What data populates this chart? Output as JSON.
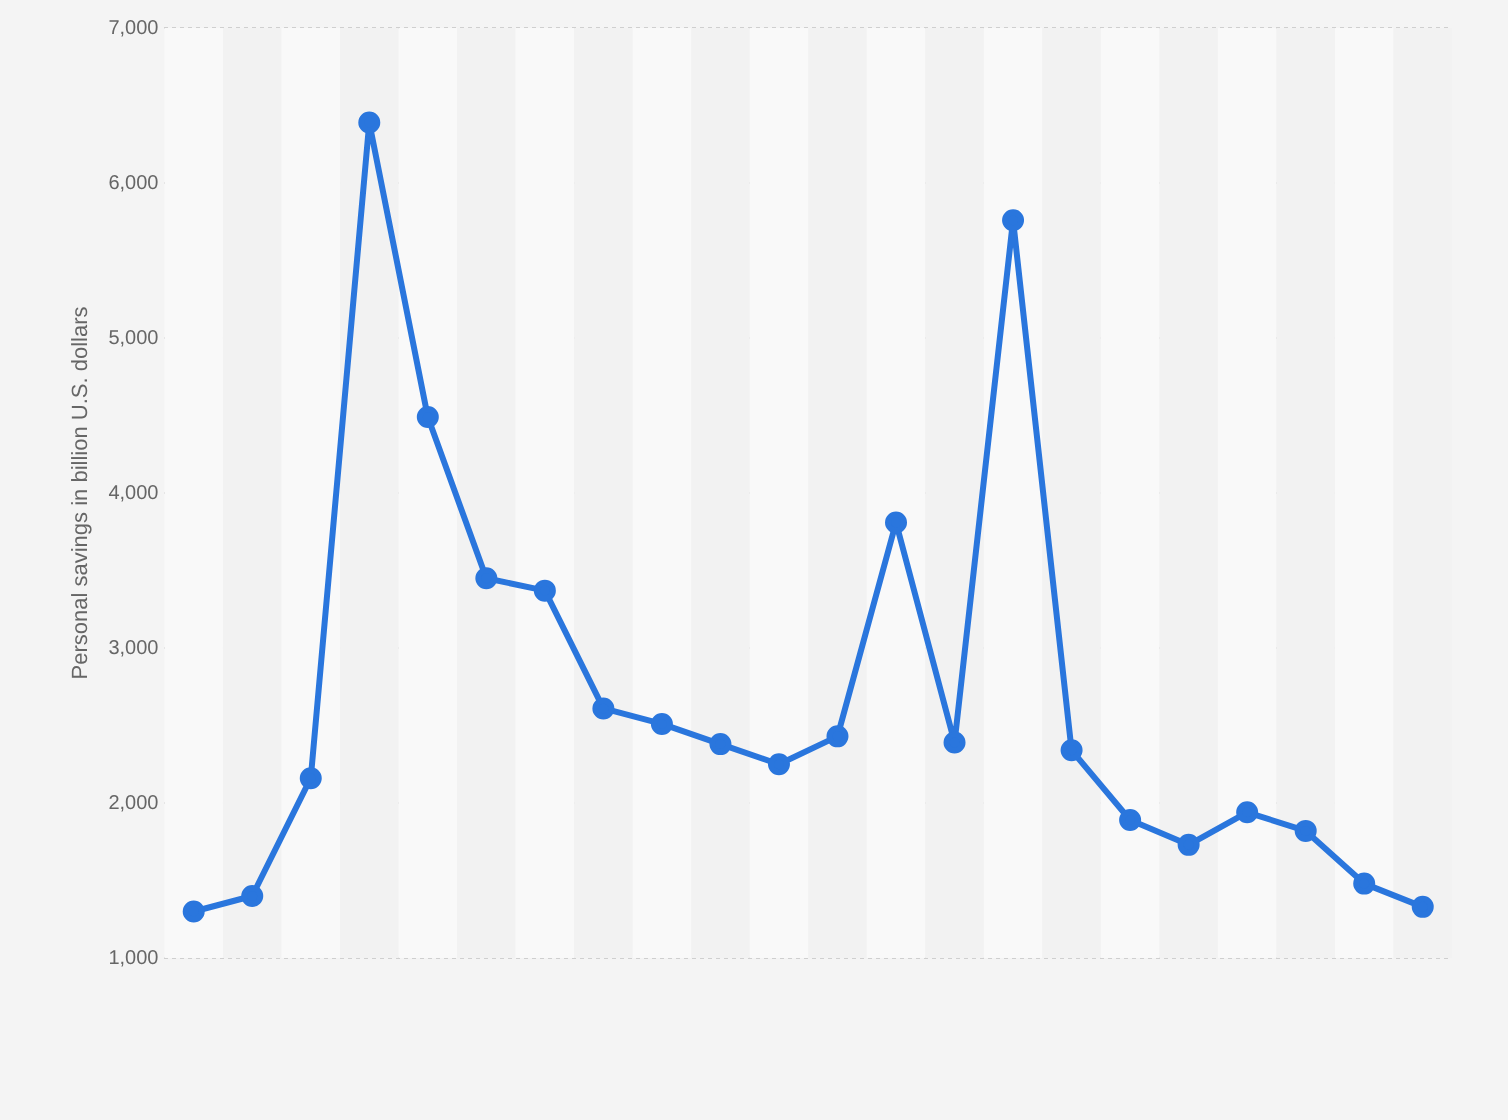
{
  "chart_data": {
    "type": "line",
    "ylabel": "Personal savings in billion U.S. dollars",
    "categories": [
      null,
      null,
      null,
      null,
      null,
      null,
      null,
      null,
      null,
      null,
      null,
      null,
      null,
      null,
      null,
      null,
      null,
      null,
      null,
      null,
      null,
      null
    ],
    "series": [
      {
        "color": "#2a76dd",
        "values": [
          1300,
          1400,
          2160,
          6390,
          4490,
          3450,
          3370,
          2610,
          2510,
          2380,
          2250,
          2430,
          3810,
          2390,
          5760,
          2340,
          1890,
          1730,
          1940,
          1820,
          1480,
          1330
        ]
      }
    ],
    "ylim": [
      1000,
      7000
    ],
    "yticks": [
      {
        "value": 1000,
        "label": "1,000"
      },
      {
        "value": 2000,
        "label": "2,000"
      },
      {
        "value": 3000,
        "label": "3,000"
      },
      {
        "value": 4000,
        "label": "4,000"
      },
      {
        "value": 5000,
        "label": "5,000"
      },
      {
        "value": 6000,
        "label": "6,000"
      },
      {
        "value": 7000,
        "label": "7,000"
      }
    ],
    "grid": "y",
    "tick_labels": "y",
    "marker": "circle",
    "line_style": "solid",
    "legend": false
  }
}
